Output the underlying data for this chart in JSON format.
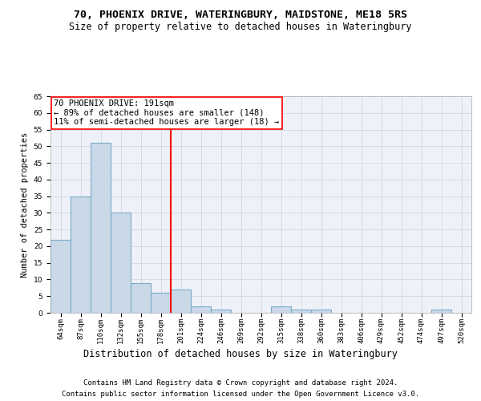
{
  "title_line1": "70, PHOENIX DRIVE, WATERINGBURY, MAIDSTONE, ME18 5RS",
  "title_line2": "Size of property relative to detached houses in Wateringbury",
  "xlabel": "Distribution of detached houses by size in Wateringbury",
  "ylabel": "Number of detached properties",
  "categories": [
    "64sqm",
    "87sqm",
    "110sqm",
    "132sqm",
    "155sqm",
    "178sqm",
    "201sqm",
    "224sqm",
    "246sqm",
    "269sqm",
    "292sqm",
    "315sqm",
    "338sqm",
    "360sqm",
    "383sqm",
    "406sqm",
    "429sqm",
    "452sqm",
    "474sqm",
    "497sqm",
    "520sqm"
  ],
  "values": [
    22,
    35,
    51,
    30,
    9,
    6,
    7,
    2,
    1,
    0,
    0,
    2,
    1,
    1,
    0,
    0,
    0,
    0,
    0,
    1,
    0
  ],
  "bar_color": "#c9d9e8",
  "bar_edgecolor": "#7aaac8",
  "bar_linewidth": 0.8,
  "vline_x": 5.5,
  "vline_color": "red",
  "vline_linewidth": 1.5,
  "annotation_line1": "70 PHOENIX DRIVE: 191sqm",
  "annotation_line2": "← 89% of detached houses are smaller (148)",
  "annotation_line3": "11% of semi-detached houses are larger (18) →",
  "annotation_fontsize": 7.5,
  "annotation_box_color": "white",
  "annotation_box_edgecolor": "red",
  "ylim": [
    0,
    65
  ],
  "yticks": [
    0,
    5,
    10,
    15,
    20,
    25,
    30,
    35,
    40,
    45,
    50,
    55,
    60,
    65
  ],
  "grid_color": "#d0d8e4",
  "bg_color": "#eef2f8",
  "fig_bg_color": "#ffffff",
  "footer_line1": "Contains HM Land Registry data © Crown copyright and database right 2024.",
  "footer_line2": "Contains public sector information licensed under the Open Government Licence v3.0.",
  "title_fontsize": 9.5,
  "subtitle_fontsize": 8.5,
  "xlabel_fontsize": 8.5,
  "ylabel_fontsize": 7.5,
  "tick_fontsize": 6.5,
  "footer_fontsize": 6.5
}
